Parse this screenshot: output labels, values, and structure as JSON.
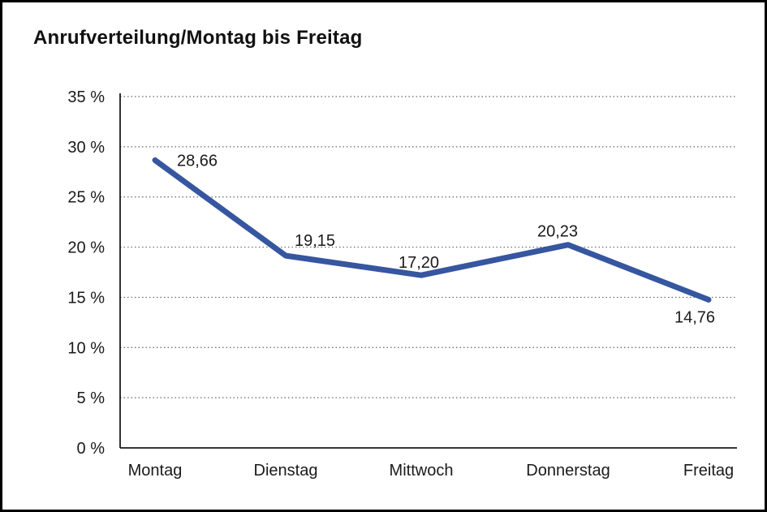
{
  "title": "Anrufverteilung/Montag bis Freitag",
  "colors": {
    "line": "#3656A0",
    "text": "#1a1a1a",
    "grid": "#666666",
    "axis": "#1a1a1a",
    "background": "#ffffff",
    "border": "#000000"
  },
  "chart_data": {
    "type": "line",
    "title": "Anrufverteilung/Montag bis Freitag",
    "categories": [
      "Montag",
      "Dienstag",
      "Mittwoch",
      "Donnerstag",
      "Freitag"
    ],
    "values": [
      28.66,
      19.15,
      17.2,
      20.23,
      14.76
    ],
    "data_labels": [
      "28,66",
      "19,15",
      "17,20",
      "20,23",
      "14,76"
    ],
    "xlabel": "",
    "ylabel": "",
    "ylim": [
      0,
      35
    ],
    "ytick_step": 5,
    "ytick_labels": [
      "0 %",
      "5 %",
      "10 %",
      "15 %",
      "20 %",
      "25 %",
      "30 %",
      "35 %"
    ],
    "grid": "horizontal-dotted",
    "legend": "none"
  }
}
